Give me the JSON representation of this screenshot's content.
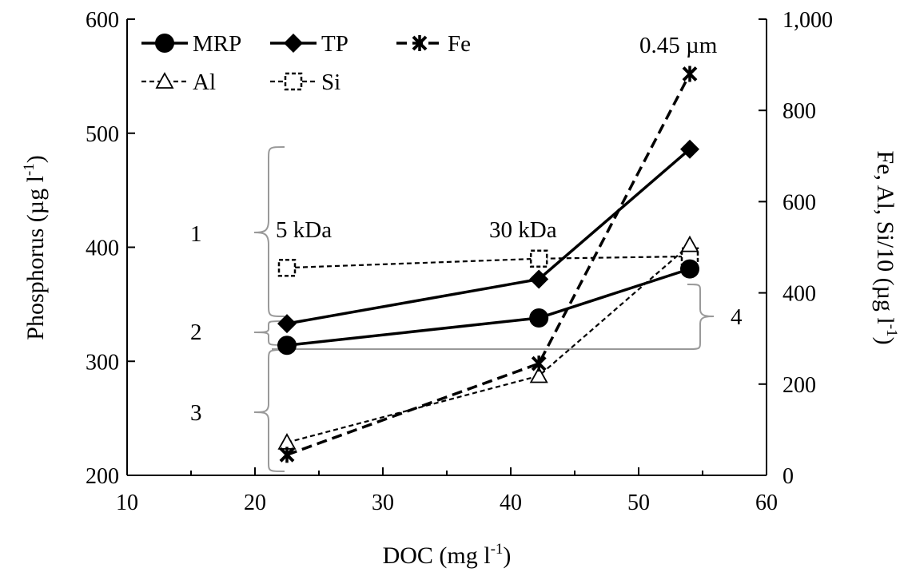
{
  "chart_data": {
    "type": "line",
    "xlabel": "DOC (mg l",
    "xlabel_sup": "-1",
    "xlabel_end": ")",
    "ylabel_left": "Phosphorus (µg l",
    "ylabel_left_sup": "-1",
    "ylabel_left_end": ")",
    "ylabel_right": "Fe, Al, Si/10 (µg l",
    "ylabel_right_sup": "-1",
    "ylabel_right_end": ")",
    "xlim": [
      10,
      60
    ],
    "ylim_left": [
      200,
      600
    ],
    "ylim_right": [
      0,
      1000
    ],
    "x_ticks": [
      "10",
      "20",
      "30",
      "40",
      "50",
      "60"
    ],
    "y_left_ticks": [
      "200",
      "300",
      "400",
      "500",
      "600"
    ],
    "y_right_ticks": [
      "0",
      "200",
      "400",
      "600",
      "800",
      "1,000"
    ],
    "x": [
      22.5,
      42.2,
      54
    ],
    "series": [
      {
        "name": "MRP",
        "axis": "left",
        "style": "solid",
        "marker": "circle",
        "values": [
          314,
          338,
          381
        ]
      },
      {
        "name": "TP",
        "axis": "left",
        "style": "solid",
        "marker": "diamond",
        "values": [
          333,
          372,
          486
        ]
      },
      {
        "name": "Fe",
        "axis": "right",
        "style": "dashed",
        "marker": "star",
        "values": [
          45,
          245,
          880
        ]
      },
      {
        "name": "Al",
        "axis": "right",
        "style": "dotted",
        "marker": "triangle",
        "values": [
          72,
          218,
          505
        ]
      },
      {
        "name": "Si",
        "axis": "right",
        "style": "dotted",
        "marker": "square",
        "values": [
          455,
          475,
          480
        ]
      }
    ],
    "annotations": [
      {
        "text": "5 kDa"
      },
      {
        "text": "30 kDa"
      },
      {
        "text": "0.45 µm"
      },
      {
        "text": "1"
      },
      {
        "text": "2"
      },
      {
        "text": "3"
      },
      {
        "text": "4"
      }
    ],
    "legend_placement": "top-left",
    "grid": false
  }
}
